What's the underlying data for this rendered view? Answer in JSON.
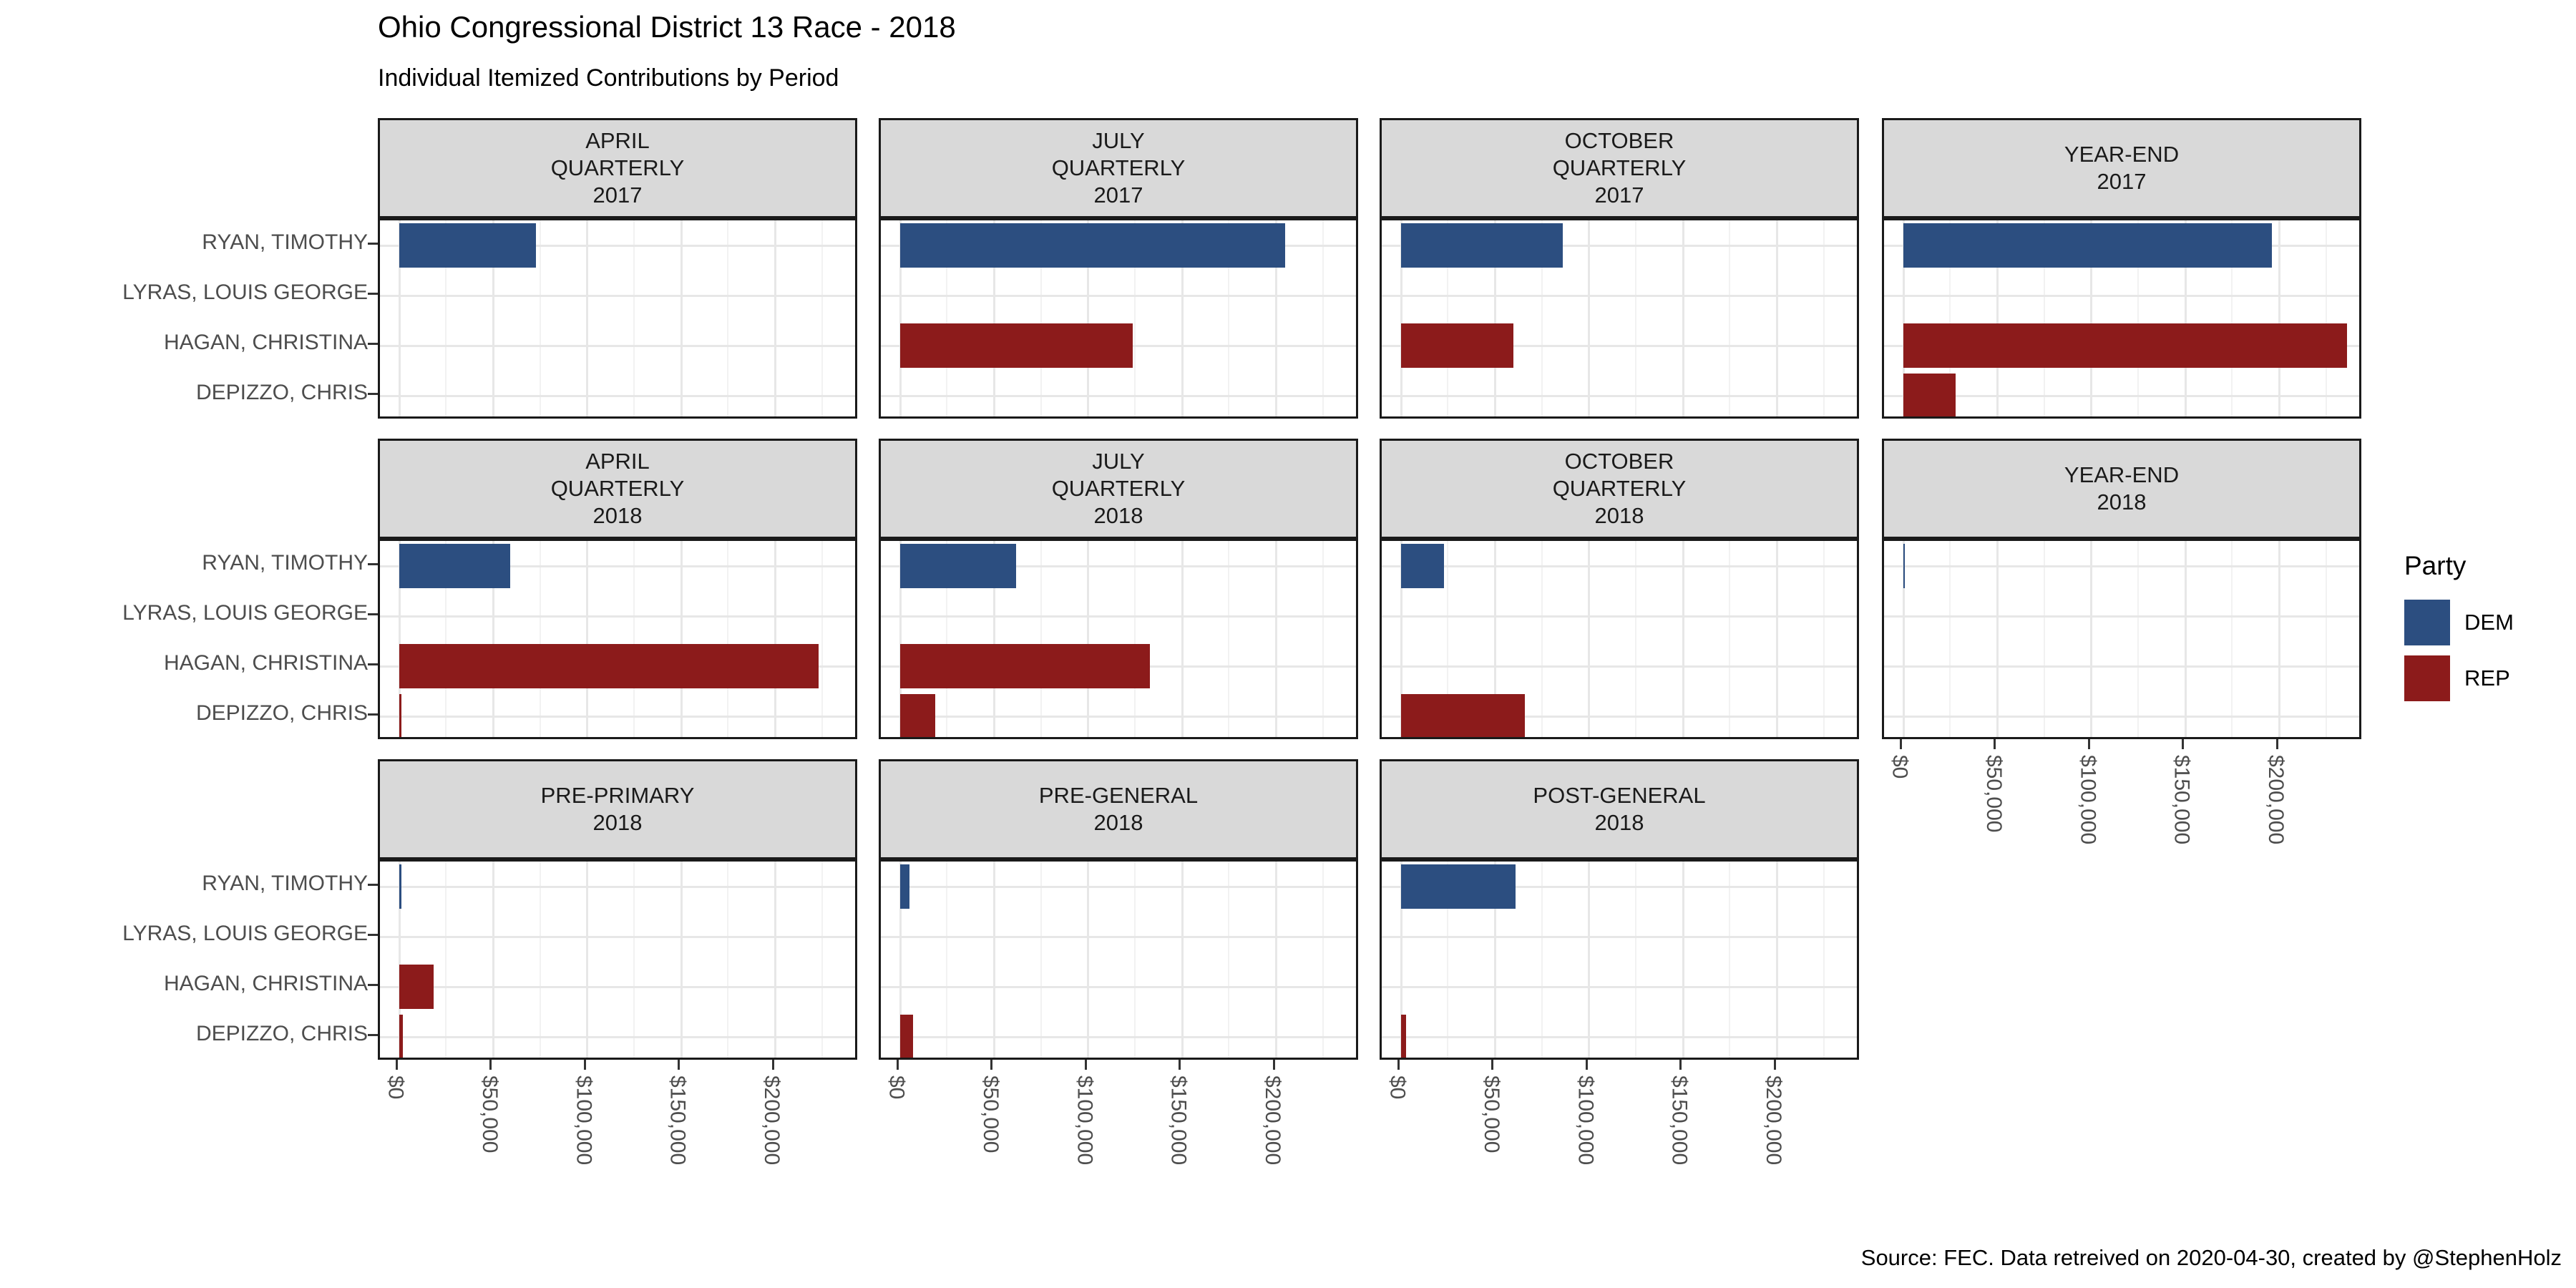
{
  "title": "Ohio Congressional District 13 Race - 2018",
  "subtitle": "Individual Itemized Contributions by Period",
  "caption": "Source: FEC. Data retreived on 2020-04-30, created by @StephenHolz",
  "legend": {
    "title": "Party",
    "entries": [
      {
        "label": "DEM",
        "color": "#2C4E80"
      },
      {
        "label": "REP",
        "color": "#8C1B1B"
      }
    ]
  },
  "colors": {
    "dem": "#2C4E80",
    "rep": "#8C1B1B",
    "strip_bg": "#D9D9D9",
    "panel_border": "#1A1A1A",
    "grid_major": "#E7E7E7",
    "grid_minor": "#F2F2F2",
    "axis_text": "#4D4D4D"
  },
  "chart_data": {
    "type": "bar",
    "orientation": "horizontal",
    "title": "Ohio Congressional District 13 Race - 2018",
    "subtitle": "Individual Itemized Contributions by Period",
    "categories": [
      "RYAN, TIMOTHY",
      "LYRAS, LOUIS GEORGE",
      "HAGAN, CHRISTINA",
      "DEPIZZO, CHRIS"
    ],
    "x_ticks": {
      "labels": [
        "$0",
        "$50,000",
        "$100,000",
        "$150,000",
        "$200,000"
      ],
      "values": [
        0,
        50000,
        100000,
        150000,
        200000
      ]
    },
    "xlim": [
      0,
      244000
    ],
    "grid_minor_step": 25000,
    "legend_position": "right",
    "facets": [
      {
        "label_lines": [
          "APRIL",
          "QUARTERLY",
          "2017"
        ],
        "row": 0,
        "col": 0,
        "show_x_axis": false,
        "bars": [
          {
            "candidate": "RYAN, TIMOTHY",
            "party": "DEM",
            "value": 73000
          }
        ]
      },
      {
        "label_lines": [
          "JULY",
          "QUARTERLY",
          "2017"
        ],
        "row": 0,
        "col": 1,
        "show_x_axis": false,
        "bars": [
          {
            "candidate": "RYAN, TIMOTHY",
            "party": "DEM",
            "value": 205000
          },
          {
            "candidate": "HAGAN, CHRISTINA",
            "party": "REP",
            "value": 124000
          }
        ]
      },
      {
        "label_lines": [
          "OCTOBER",
          "QUARTERLY",
          "2017"
        ],
        "row": 0,
        "col": 2,
        "show_x_axis": false,
        "bars": [
          {
            "candidate": "RYAN, TIMOTHY",
            "party": "DEM",
            "value": 86000
          },
          {
            "candidate": "HAGAN, CHRISTINA",
            "party": "REP",
            "value": 60000
          }
        ]
      },
      {
        "label_lines": [
          "YEAR-END",
          "2017"
        ],
        "row": 0,
        "col": 3,
        "show_x_axis": false,
        "bars": [
          {
            "candidate": "RYAN, TIMOTHY",
            "party": "DEM",
            "value": 196000
          },
          {
            "candidate": "HAGAN, CHRISTINA",
            "party": "REP",
            "value": 236000
          },
          {
            "candidate": "DEPIZZO, CHRIS",
            "party": "REP",
            "value": 28000
          }
        ]
      },
      {
        "label_lines": [
          "APRIL",
          "QUARTERLY",
          "2018"
        ],
        "row": 1,
        "col": 0,
        "show_x_axis": false,
        "bars": [
          {
            "candidate": "RYAN, TIMOTHY",
            "party": "DEM",
            "value": 59000
          },
          {
            "candidate": "HAGAN, CHRISTINA",
            "party": "REP",
            "value": 223000
          },
          {
            "candidate": "DEPIZZO, CHRIS",
            "party": "REP",
            "value": 1500
          }
        ]
      },
      {
        "label_lines": [
          "JULY",
          "QUARTERLY",
          "2018"
        ],
        "row": 1,
        "col": 1,
        "show_x_axis": false,
        "bars": [
          {
            "candidate": "RYAN, TIMOTHY",
            "party": "DEM",
            "value": 62000
          },
          {
            "candidate": "HAGAN, CHRISTINA",
            "party": "REP",
            "value": 133000
          },
          {
            "candidate": "DEPIZZO, CHRIS",
            "party": "REP",
            "value": 19000
          }
        ]
      },
      {
        "label_lines": [
          "OCTOBER",
          "QUARTERLY",
          "2018"
        ],
        "row": 1,
        "col": 2,
        "show_x_axis": false,
        "bars": [
          {
            "candidate": "RYAN, TIMOTHY",
            "party": "DEM",
            "value": 23000
          },
          {
            "candidate": "DEPIZZO, CHRIS",
            "party": "REP",
            "value": 66000
          }
        ]
      },
      {
        "label_lines": [
          "YEAR-END",
          "2018"
        ],
        "row": 1,
        "col": 3,
        "show_x_axis": true,
        "bars": [
          {
            "candidate": "RYAN, TIMOTHY",
            "party": "DEM",
            "value": 1000
          }
        ]
      },
      {
        "label_lines": [
          "PRE-PRIMARY",
          "2018"
        ],
        "row": 2,
        "col": 0,
        "show_x_axis": true,
        "bars": [
          {
            "candidate": "RYAN, TIMOTHY",
            "party": "DEM",
            "value": 1200
          },
          {
            "candidate": "HAGAN, CHRISTINA",
            "party": "REP",
            "value": 18500
          },
          {
            "candidate": "DEPIZZO, CHRIS",
            "party": "REP",
            "value": 2000
          }
        ]
      },
      {
        "label_lines": [
          "PRE-GENERAL",
          "2018"
        ],
        "row": 2,
        "col": 1,
        "show_x_axis": true,
        "bars": [
          {
            "candidate": "RYAN, TIMOTHY",
            "party": "DEM",
            "value": 5000
          },
          {
            "candidate": "DEPIZZO, CHRIS",
            "party": "REP",
            "value": 7000
          }
        ]
      },
      {
        "label_lines": [
          "POST-GENERAL",
          "2018"
        ],
        "row": 2,
        "col": 2,
        "show_x_axis": true,
        "bars": [
          {
            "candidate": "RYAN, TIMOTHY",
            "party": "DEM",
            "value": 61000
          },
          {
            "candidate": "DEPIZZO, CHRIS",
            "party": "REP",
            "value": 3000
          }
        ]
      }
    ]
  }
}
